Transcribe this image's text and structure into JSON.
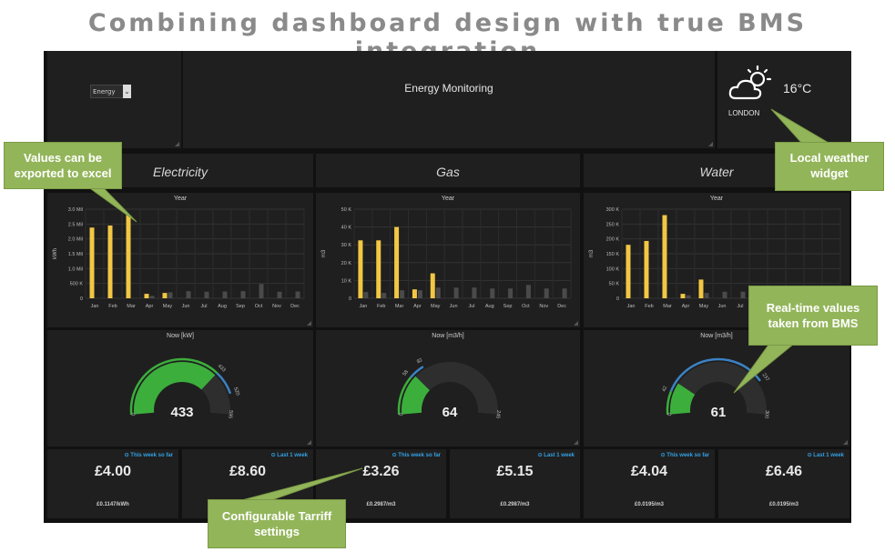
{
  "heading": "Combining dashboard design with true BMS integration",
  "header": {
    "selector_value": "Energy",
    "title": "Energy Monitoring",
    "weather": {
      "temperature": "16°C",
      "city": "LONDON",
      "icon": "cloud-sun-icon"
    }
  },
  "sections": [
    {
      "title": "Electricity"
    },
    {
      "title": "Gas"
    },
    {
      "title": "Water"
    }
  ],
  "charts": [
    {
      "title": "Year"
    },
    {
      "title": "Year"
    },
    {
      "title": "Year"
    }
  ],
  "chart_data": [
    {
      "type": "bar",
      "title": "Year",
      "ylabel": "kWh",
      "categories": [
        "Jan",
        "Feb",
        "Mar",
        "Apr",
        "May",
        "Jun",
        "Jul",
        "Aug",
        "Sep",
        "Oct",
        "Nov",
        "Dec"
      ],
      "ylim": [
        0,
        3000000
      ],
      "yticks": [
        0,
        500000,
        1000000,
        1500000,
        2000000,
        2500000,
        3000000
      ],
      "ytick_labels": [
        "0",
        "500 K",
        "1.0 Mil",
        "1.5 Mil",
        "2.0 Mil",
        "2.5 Mil",
        "3.0 Mil"
      ],
      "series": [
        {
          "name": "",
          "color": "#f2c744",
          "values": [
            2380000,
            2450000,
            2800000,
            150000,
            180000,
            null,
            null,
            null,
            null,
            null,
            null,
            null
          ]
        },
        {
          "name": "",
          "color": "#4a4a4a",
          "values": [
            0,
            0,
            0,
            80000,
            200000,
            240000,
            220000,
            230000,
            240000,
            480000,
            220000,
            230000
          ]
        }
      ],
      "grid": true
    },
    {
      "type": "bar",
      "title": "Year",
      "ylabel": "m3",
      "categories": [
        "Jan",
        "Feb",
        "Mar",
        "Apr",
        "May",
        "Jun",
        "Jul",
        "Aug",
        "Sep",
        "Oct",
        "Nov",
        "Dec"
      ],
      "ylim": [
        0,
        50000
      ],
      "yticks": [
        0,
        10000,
        20000,
        30000,
        40000,
        50000
      ],
      "ytick_labels": [
        "0",
        "10 K",
        "20 K",
        "30 K",
        "40 K",
        "50 K"
      ],
      "series": [
        {
          "name": "",
          "color": "#f2c744",
          "values": [
            32500,
            32500,
            40000,
            5000,
            14000,
            null,
            null,
            null,
            null,
            null,
            null,
            null
          ]
        },
        {
          "name": "",
          "color": "#4a4a4a",
          "values": [
            3500,
            3000,
            4500,
            4500,
            6000,
            6000,
            6000,
            5500,
            5500,
            7500,
            5500,
            5500
          ]
        }
      ],
      "grid": true
    },
    {
      "type": "bar",
      "title": "Year",
      "ylabel": "m3",
      "categories": [
        "Jan",
        "Feb",
        "Mar",
        "Apr",
        "May",
        "Jun",
        "Jul",
        "Aug",
        "Sep",
        "Oct",
        "Nov",
        "Dec"
      ],
      "ylim": [
        0,
        300000
      ],
      "yticks": [
        0,
        50000,
        100000,
        150000,
        200000,
        250000,
        300000
      ],
      "ytick_labels": [
        "0",
        "50 K",
        "100 K",
        "150 K",
        "200 K",
        "250 K",
        "300 K"
      ],
      "series": [
        {
          "name": "",
          "color": "#f2c744",
          "values": [
            180000,
            193000,
            280000,
            15000,
            63000,
            null,
            null,
            null,
            null,
            null,
            null,
            null
          ]
        },
        {
          "name": "",
          "color": "#4a4a4a",
          "values": [
            0,
            0,
            0,
            10000,
            18000,
            22000,
            22000,
            20000,
            22000,
            22000,
            18000,
            18000
          ]
        }
      ],
      "grid": true
    }
  ],
  "gauges": [
    {
      "title": "Now [kW]",
      "value": 433,
      "min": 0,
      "max": 595,
      "value_label": "433",
      "min_label": "0",
      "max_label": "595",
      "threshold1_label": "433",
      "threshold2_label": "520",
      "threshold1": 433,
      "threshold2": 520,
      "color_low": "#3cae3c",
      "color_high": "#3b82c4"
    },
    {
      "title": "Now [m3/h]",
      "value": 64,
      "min": 0,
      "max": 245,
      "value_label": "64",
      "min_label": "0",
      "max_label": "245",
      "threshold1_label": "58",
      "threshold2_label": "82",
      "threshold1": 58,
      "threshold2": 82,
      "color_low": "#3cae3c",
      "color_high": "#3b82c4"
    },
    {
      "title": "Now [m3/h]",
      "value": 61,
      "min": 0,
      "max": 300,
      "value_label": "61",
      "min_label": "0",
      "max_label": "300",
      "threshold1_label": "42",
      "threshold2_label": "237",
      "threshold1": 42,
      "threshold2": 237,
      "color_low": "#3cae3c",
      "color_high": "#3b82c4"
    }
  ],
  "stats": [
    {
      "period": "⊙ This week so far",
      "value": "£4.00",
      "rate": "£0.1147/kWh"
    },
    {
      "period": "⊙ Last 1 week",
      "value": "£8.60",
      "rate": ""
    },
    {
      "period": "⊙ This week so far",
      "value": "£3.26",
      "rate": "£0.2987/m3"
    },
    {
      "period": "⊙ Last 1 week",
      "value": "£5.15",
      "rate": "£0.2987/m3"
    },
    {
      "period": "⊙ This week so far",
      "value": "£4.04",
      "rate": "£0.0195/m3"
    },
    {
      "period": "⊙ Last 1 week",
      "value": "£6.46",
      "rate": "£0.0195/m3"
    }
  ],
  "callouts": {
    "export": "Values can be exported to excel",
    "weather": "Local weather widget",
    "realtime": "Real-time values taken from BMS",
    "tariff": "Configurable Tarriff settings"
  },
  "colors": {
    "bar_current": "#f2c744",
    "bar_previous": "#4a4a4a",
    "callout": "#93b55a",
    "accent_blue": "#33a2e5"
  }
}
